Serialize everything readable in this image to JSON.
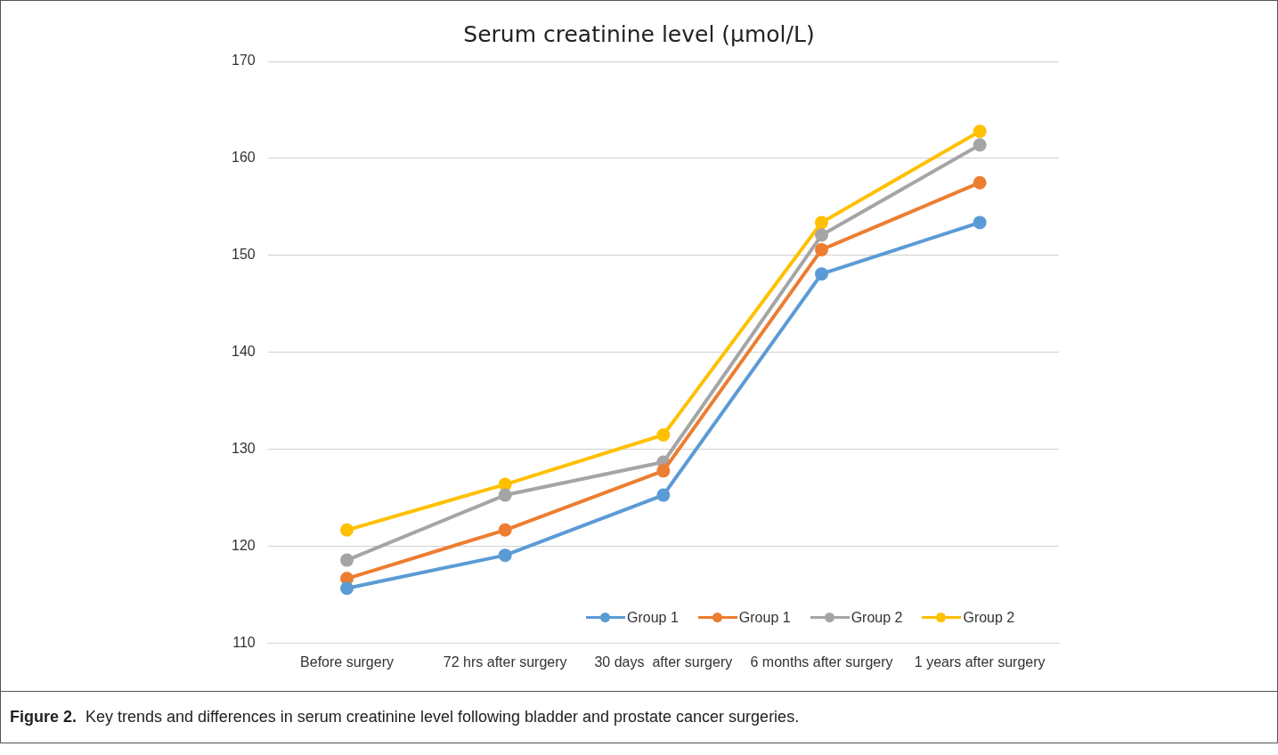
{
  "chart_data": {
    "type": "line",
    "title": "Serum creatinine level (µmol/L)",
    "categories": [
      "Before surgery",
      "72 hrs after surgery",
      "30 days  after surgery",
      "6 months after surgery",
      "1 years after surgery"
    ],
    "series": [
      {
        "name": "Group 1",
        "color": "#5b9bd5",
        "values": [
          115.7,
          119.1,
          125.3,
          148.1,
          153.4
        ]
      },
      {
        "name": "Group 1",
        "color": "#ed7d31",
        "values": [
          116.7,
          121.7,
          127.8,
          150.6,
          157.5
        ]
      },
      {
        "name": "Group 2",
        "color": "#a5a5a5",
        "values": [
          118.6,
          125.3,
          128.7,
          152.1,
          161.4
        ]
      },
      {
        "name": "Group 2",
        "color": "#ffc000",
        "values": [
          121.7,
          126.4,
          131.5,
          153.4,
          162.8
        ]
      }
    ],
    "ylim": [
      110,
      170
    ],
    "yticks": [
      110,
      120,
      130,
      140,
      150,
      160,
      170
    ],
    "grid": "y",
    "legend": "bottom right",
    "marker": "circle",
    "line_style": "solid",
    "annotations": [
      "Figure 2.  Key trends and differences in serum creatinine level following bladder and prostate cancer surgeries."
    ]
  }
}
